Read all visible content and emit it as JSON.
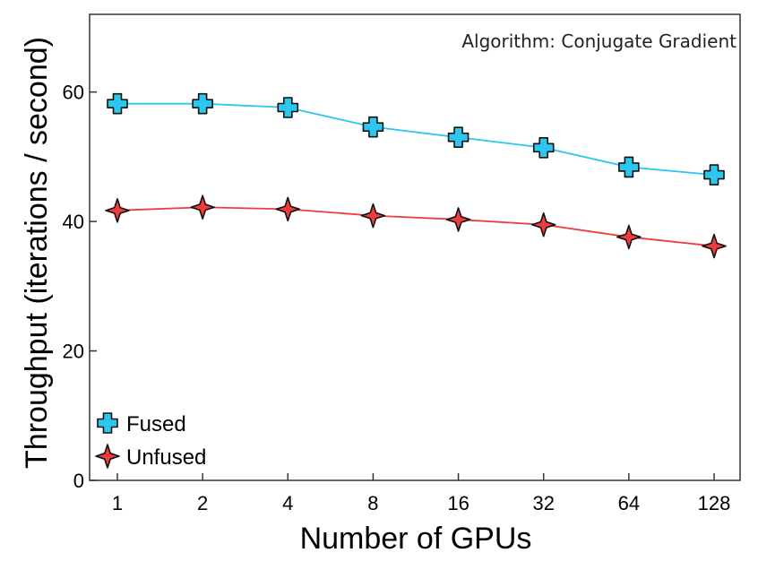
{
  "chart_data": {
    "type": "line",
    "title": "",
    "annotation": "Algorithm: Conjugate Gradient",
    "xlabel": "Number of GPUs",
    "ylabel": "Throughput (iterations / second)",
    "categories": [
      "1",
      "2",
      "4",
      "8",
      "16",
      "32",
      "64",
      "128"
    ],
    "ylim": [
      0,
      72
    ],
    "yticks": [
      0,
      20,
      40,
      60
    ],
    "grid": false,
    "legend_position": "bottom-left",
    "series": [
      {
        "name": "Fused",
        "color": "#2cc6ee",
        "marker": "plus",
        "values": [
          58.2,
          58.2,
          57.6,
          54.6,
          53.0,
          51.4,
          48.4,
          47.2
        ]
      },
      {
        "name": "Unfused",
        "color": "#f03c3c",
        "marker": "star",
        "values": [
          41.7,
          42.2,
          41.9,
          40.9,
          40.3,
          39.5,
          37.6,
          36.2
        ]
      }
    ]
  }
}
